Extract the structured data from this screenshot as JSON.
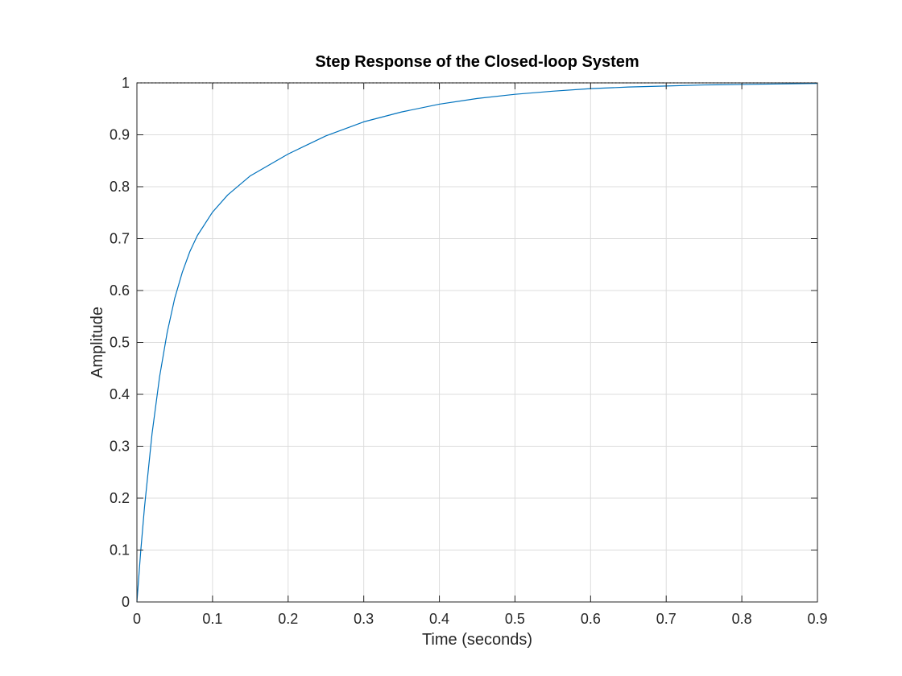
{
  "chart_data": {
    "type": "line",
    "title": "Step Response of the Closed-loop System",
    "xlabel": "Time (seconds)",
    "ylabel": "Amplitude",
    "xlim": [
      0,
      0.9
    ],
    "ylim": [
      0,
      1
    ],
    "xticks": [
      0,
      0.1,
      0.2,
      0.3,
      0.4,
      0.5,
      0.6,
      0.7,
      0.8,
      0.9
    ],
    "yticks": [
      0,
      0.1,
      0.2,
      0.3,
      0.4,
      0.5,
      0.6,
      0.7,
      0.8,
      0.9,
      1
    ],
    "xtick_labels": [
      "0",
      "0.1",
      "0.2",
      "0.3",
      "0.4",
      "0.5",
      "0.6",
      "0.7",
      "0.8",
      "0.9"
    ],
    "ytick_labels": [
      "0",
      "0.1",
      "0.2",
      "0.3",
      "0.4",
      "0.5",
      "0.6",
      "0.7",
      "0.8",
      "0.9",
      "1"
    ],
    "grid": true,
    "steady_state_value": 1,
    "series": [
      {
        "color": "#0072BD",
        "x": [
          0,
          0.005,
          0.01,
          0.02,
          0.03,
          0.04,
          0.05,
          0.06,
          0.07,
          0.08,
          0.1,
          0.12,
          0.15,
          0.2,
          0.25,
          0.3,
          0.35,
          0.4,
          0.45,
          0.5,
          0.55,
          0.6,
          0.65,
          0.7,
          0.75,
          0.8,
          0.85,
          0.9
        ],
        "y": [
          0,
          0.097,
          0.182,
          0.324,
          0.434,
          0.519,
          0.585,
          0.635,
          0.675,
          0.706,
          0.751,
          0.784,
          0.821,
          0.863,
          0.898,
          0.925,
          0.944,
          0.959,
          0.97,
          0.978,
          0.984,
          0.989,
          0.992,
          0.994,
          0.996,
          0.997,
          0.998,
          0.999
        ]
      }
    ],
    "colors": {
      "series": "#0072BD",
      "grid": "#dcdcdc",
      "axis": "#262626",
      "reference": "#262626"
    }
  }
}
